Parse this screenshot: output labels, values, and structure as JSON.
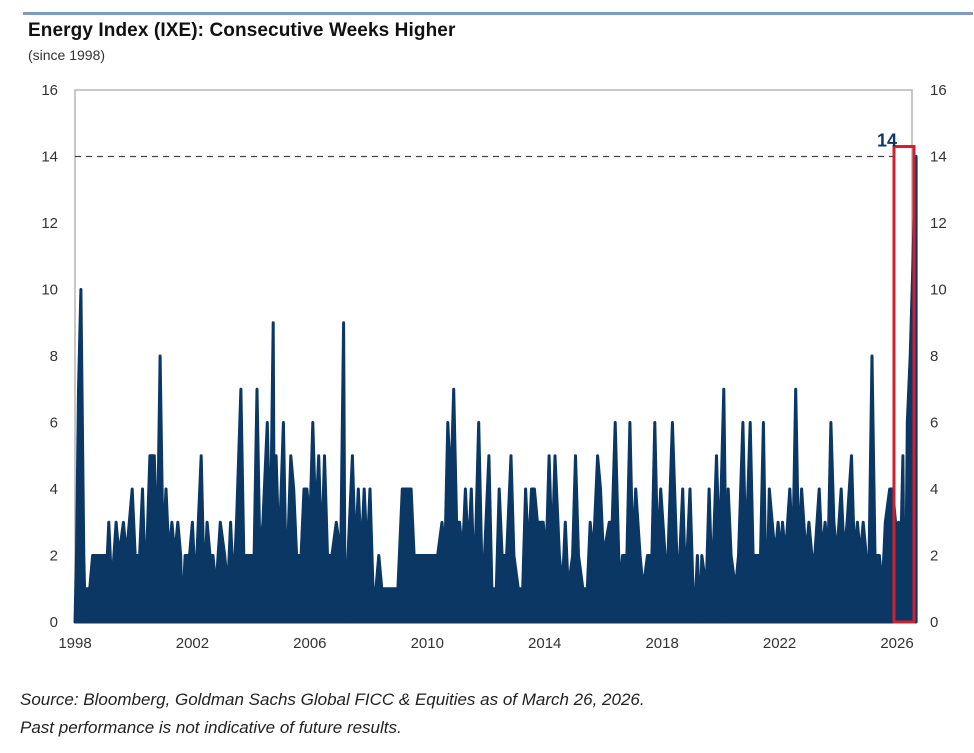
{
  "header": {
    "title": "Energy Index (IXE): Consecutive Weeks Higher",
    "subtitle": "(since 1998)"
  },
  "footer": {
    "source": "Source: Bloomberg, Goldman Sachs Global FICC & Equities as of March 26, 2026.",
    "disclaimer": "Past performance is not indicative of future results."
  },
  "colors": {
    "series": "#0b3764",
    "highlight_box": "#d0202b",
    "top_rule": "#7d9cc4",
    "reference_line": "#444444"
  },
  "chart_data": {
    "type": "area",
    "title": "Energy Index (IXE): Consecutive Weeks Higher",
    "subtitle": "(since 1998)",
    "xlabel": "",
    "ylabel": "",
    "xlim": [
      1998,
      2026.25
    ],
    "ylim": [
      0,
      16
    ],
    "x_ticks": [
      "1998",
      "2002",
      "2006",
      "2010",
      "2014",
      "2018",
      "2022",
      "2026"
    ],
    "y_ticks_left": [
      "0",
      "2",
      "4",
      "6",
      "8",
      "10",
      "12",
      "14",
      "16"
    ],
    "y_ticks_right": [
      "0",
      "2",
      "4",
      "6",
      "8",
      "10",
      "12",
      "14",
      "16"
    ],
    "grid": false,
    "reference_line": {
      "y": 14,
      "style": "dashed"
    },
    "annotation": {
      "text": "14",
      "x": 2026.2,
      "y": 14
    },
    "highlight": {
      "x_from": 2025.9,
      "x_to": 2026.45,
      "y_from": 0,
      "y_to": 14.3
    },
    "series": [
      {
        "name": "Consecutive weeks higher",
        "points": [
          [
            1998.0,
            0
          ],
          [
            1998.05,
            2
          ],
          [
            1998.12,
            7
          ],
          [
            1998.2,
            10
          ],
          [
            1998.3,
            2
          ],
          [
            1998.35,
            0
          ],
          [
            1998.4,
            1
          ],
          [
            1998.5,
            1
          ],
          [
            1998.6,
            2
          ],
          [
            1998.9,
            2
          ],
          [
            1999.1,
            2
          ],
          [
            1999.15,
            3
          ],
          [
            1999.25,
            1
          ],
          [
            1999.4,
            3
          ],
          [
            1999.5,
            2
          ],
          [
            1999.65,
            3
          ],
          [
            1999.75,
            2
          ],
          [
            1999.85,
            3
          ],
          [
            1999.95,
            4
          ],
          [
            2000.05,
            2
          ],
          [
            2000.2,
            2
          ],
          [
            2000.3,
            4
          ],
          [
            2000.4,
            1
          ],
          [
            2000.55,
            5
          ],
          [
            2000.7,
            5
          ],
          [
            2000.8,
            2
          ],
          [
            2000.9,
            8
          ],
          [
            2001.0,
            2
          ],
          [
            2001.1,
            4
          ],
          [
            2001.2,
            2
          ],
          [
            2001.3,
            3
          ],
          [
            2001.4,
            2
          ],
          [
            2001.5,
            3
          ],
          [
            2001.6,
            2
          ],
          [
            2001.65,
            0
          ],
          [
            2001.75,
            2
          ],
          [
            2001.9,
            2
          ],
          [
            2002.0,
            3
          ],
          [
            2002.1,
            1
          ],
          [
            2002.3,
            5
          ],
          [
            2002.4,
            1
          ],
          [
            2002.5,
            3
          ],
          [
            2002.6,
            2
          ],
          [
            2002.7,
            2
          ],
          [
            2002.8,
            1
          ],
          [
            2002.95,
            3
          ],
          [
            2003.1,
            2
          ],
          [
            2003.2,
            1
          ],
          [
            2003.3,
            3
          ],
          [
            2003.4,
            1
          ],
          [
            2003.5,
            3
          ],
          [
            2003.65,
            7
          ],
          [
            2003.75,
            2
          ],
          [
            2003.9,
            2
          ],
          [
            2004.1,
            2
          ],
          [
            2004.2,
            7
          ],
          [
            2004.3,
            2
          ],
          [
            2004.4,
            3
          ],
          [
            2004.55,
            6
          ],
          [
            2004.65,
            2
          ],
          [
            2004.75,
            9
          ],
          [
            2004.8,
            0
          ],
          [
            2004.85,
            5
          ],
          [
            2004.95,
            2
          ],
          [
            2005.1,
            6
          ],
          [
            2005.2,
            1
          ],
          [
            2005.35,
            5
          ],
          [
            2005.45,
            4
          ],
          [
            2005.55,
            2
          ],
          [
            2005.7,
            2
          ],
          [
            2005.8,
            4
          ],
          [
            2005.9,
            4
          ],
          [
            2006.0,
            3
          ],
          [
            2006.1,
            6
          ],
          [
            2006.2,
            3
          ],
          [
            2006.3,
            5
          ],
          [
            2006.4,
            2
          ],
          [
            2006.5,
            5
          ],
          [
            2006.6,
            2
          ],
          [
            2006.75,
            2
          ],
          [
            2006.9,
            3
          ],
          [
            2007.05,
            2
          ],
          [
            2007.15,
            9
          ],
          [
            2007.2,
            0
          ],
          [
            2007.3,
            2
          ],
          [
            2007.45,
            5
          ],
          [
            2007.55,
            2
          ],
          [
            2007.65,
            4
          ],
          [
            2007.75,
            2
          ],
          [
            2007.85,
            4
          ],
          [
            2007.95,
            2
          ],
          [
            2008.05,
            4
          ],
          [
            2008.15,
            1
          ],
          [
            2008.25,
            1
          ],
          [
            2008.35,
            2
          ],
          [
            2008.45,
            1
          ],
          [
            2008.6,
            1
          ],
          [
            2008.8,
            1
          ],
          [
            2009.0,
            1
          ],
          [
            2009.15,
            4
          ],
          [
            2009.45,
            4
          ],
          [
            2009.55,
            2
          ],
          [
            2009.7,
            2
          ],
          [
            2010.0,
            2
          ],
          [
            2010.2,
            2
          ],
          [
            2010.35,
            2
          ],
          [
            2010.5,
            3
          ],
          [
            2010.6,
            2
          ],
          [
            2010.7,
            6
          ],
          [
            2010.8,
            4
          ],
          [
            2010.9,
            7
          ],
          [
            2011.0,
            3
          ],
          [
            2011.1,
            3
          ],
          [
            2011.2,
            2
          ],
          [
            2011.3,
            4
          ],
          [
            2011.4,
            2
          ],
          [
            2011.5,
            4
          ],
          [
            2011.6,
            1
          ],
          [
            2011.75,
            6
          ],
          [
            2011.85,
            2
          ],
          [
            2011.95,
            2
          ],
          [
            2012.1,
            5
          ],
          [
            2012.2,
            1
          ],
          [
            2012.35,
            1
          ],
          [
            2012.45,
            4
          ],
          [
            2012.55,
            2
          ],
          [
            2012.7,
            2
          ],
          [
            2012.85,
            5
          ],
          [
            2012.95,
            2
          ],
          [
            2013.1,
            1
          ],
          [
            2013.25,
            1
          ],
          [
            2013.35,
            4
          ],
          [
            2013.45,
            2
          ],
          [
            2013.55,
            4
          ],
          [
            2013.65,
            4
          ],
          [
            2013.75,
            3
          ],
          [
            2013.95,
            3
          ],
          [
            2014.05,
            2
          ],
          [
            2014.15,
            5
          ],
          [
            2014.25,
            2
          ],
          [
            2014.35,
            5
          ],
          [
            2014.5,
            2
          ],
          [
            2014.6,
            1
          ],
          [
            2014.7,
            3
          ],
          [
            2014.8,
            1
          ],
          [
            2014.95,
            2
          ],
          [
            2015.05,
            5
          ],
          [
            2015.15,
            2
          ],
          [
            2015.3,
            1
          ],
          [
            2015.45,
            1
          ],
          [
            2015.55,
            3
          ],
          [
            2015.65,
            2
          ],
          [
            2015.8,
            5
          ],
          [
            2015.9,
            4
          ],
          [
            2016.0,
            2
          ],
          [
            2016.2,
            3
          ],
          [
            2016.3,
            3
          ],
          [
            2016.4,
            6
          ],
          [
            2016.55,
            1
          ],
          [
            2016.65,
            2
          ],
          [
            2016.8,
            2
          ],
          [
            2016.9,
            6
          ],
          [
            2017.0,
            2
          ],
          [
            2017.1,
            4
          ],
          [
            2017.25,
            2
          ],
          [
            2017.35,
            1
          ],
          [
            2017.5,
            2
          ],
          [
            2017.65,
            2
          ],
          [
            2017.75,
            6
          ],
          [
            2017.85,
            2
          ],
          [
            2017.95,
            4
          ],
          [
            2018.1,
            2
          ],
          [
            2018.2,
            2
          ],
          [
            2018.35,
            6
          ],
          [
            2018.5,
            2
          ],
          [
            2018.6,
            2
          ],
          [
            2018.7,
            4
          ],
          [
            2018.8,
            1
          ],
          [
            2018.95,
            4
          ],
          [
            2019.05,
            1
          ],
          [
            2019.15,
            1
          ],
          [
            2019.2,
            2
          ],
          [
            2019.3,
            0
          ],
          [
            2019.35,
            2
          ],
          [
            2019.5,
            1
          ],
          [
            2019.6,
            4
          ],
          [
            2019.7,
            1
          ],
          [
            2019.85,
            5
          ],
          [
            2019.95,
            2
          ],
          [
            2020.1,
            7
          ],
          [
            2020.2,
            0
          ],
          [
            2020.25,
            4
          ],
          [
            2020.35,
            2
          ],
          [
            2020.5,
            1
          ],
          [
            2020.6,
            2
          ],
          [
            2020.75,
            6
          ],
          [
            2020.85,
            2
          ],
          [
            2021.0,
            6
          ],
          [
            2021.1,
            2
          ],
          [
            2021.25,
            2
          ],
          [
            2021.35,
            2
          ],
          [
            2021.45,
            6
          ],
          [
            2021.55,
            0
          ],
          [
            2021.65,
            4
          ],
          [
            2021.75,
            3
          ],
          [
            2021.85,
            2
          ],
          [
            2021.95,
            3
          ],
          [
            2022.05,
            2
          ],
          [
            2022.1,
            3
          ],
          [
            2022.2,
            2
          ],
          [
            2022.35,
            4
          ],
          [
            2022.45,
            2
          ],
          [
            2022.55,
            7
          ],
          [
            2022.65,
            2
          ],
          [
            2022.75,
            4
          ],
          [
            2022.9,
            2
          ],
          [
            2023.0,
            3
          ],
          [
            2023.1,
            2
          ],
          [
            2023.2,
            2
          ],
          [
            2023.35,
            4
          ],
          [
            2023.45,
            2
          ],
          [
            2023.55,
            3
          ],
          [
            2023.65,
            2
          ],
          [
            2023.75,
            6
          ],
          [
            2023.85,
            3
          ],
          [
            2023.95,
            2
          ],
          [
            2024.1,
            4
          ],
          [
            2024.2,
            2
          ],
          [
            2024.3,
            3
          ],
          [
            2024.45,
            5
          ],
          [
            2024.55,
            2
          ],
          [
            2024.65,
            3
          ],
          [
            2024.75,
            2
          ],
          [
            2024.85,
            3
          ],
          [
            2024.95,
            2
          ],
          [
            2025.05,
            2
          ],
          [
            2025.15,
            8
          ],
          [
            2025.25,
            2
          ],
          [
            2025.4,
            2
          ],
          [
            2025.5,
            1
          ],
          [
            2025.6,
            3
          ],
          [
            2025.75,
            4
          ],
          [
            2025.85,
            4
          ],
          [
            2025.95,
            3
          ],
          [
            2026.0,
            2
          ],
          [
            2026.05,
            3
          ],
          [
            2026.1,
            2
          ],
          [
            2026.15,
            3
          ],
          [
            2026.2,
            5
          ],
          [
            2026.25,
            0
          ],
          [
            2026.3,
            1
          ],
          [
            2026.35,
            6
          ],
          [
            2026.45,
            8
          ],
          [
            2026.55,
            11
          ],
          [
            2026.6,
            13
          ],
          [
            2026.65,
            14
          ]
        ]
      }
    ]
  }
}
